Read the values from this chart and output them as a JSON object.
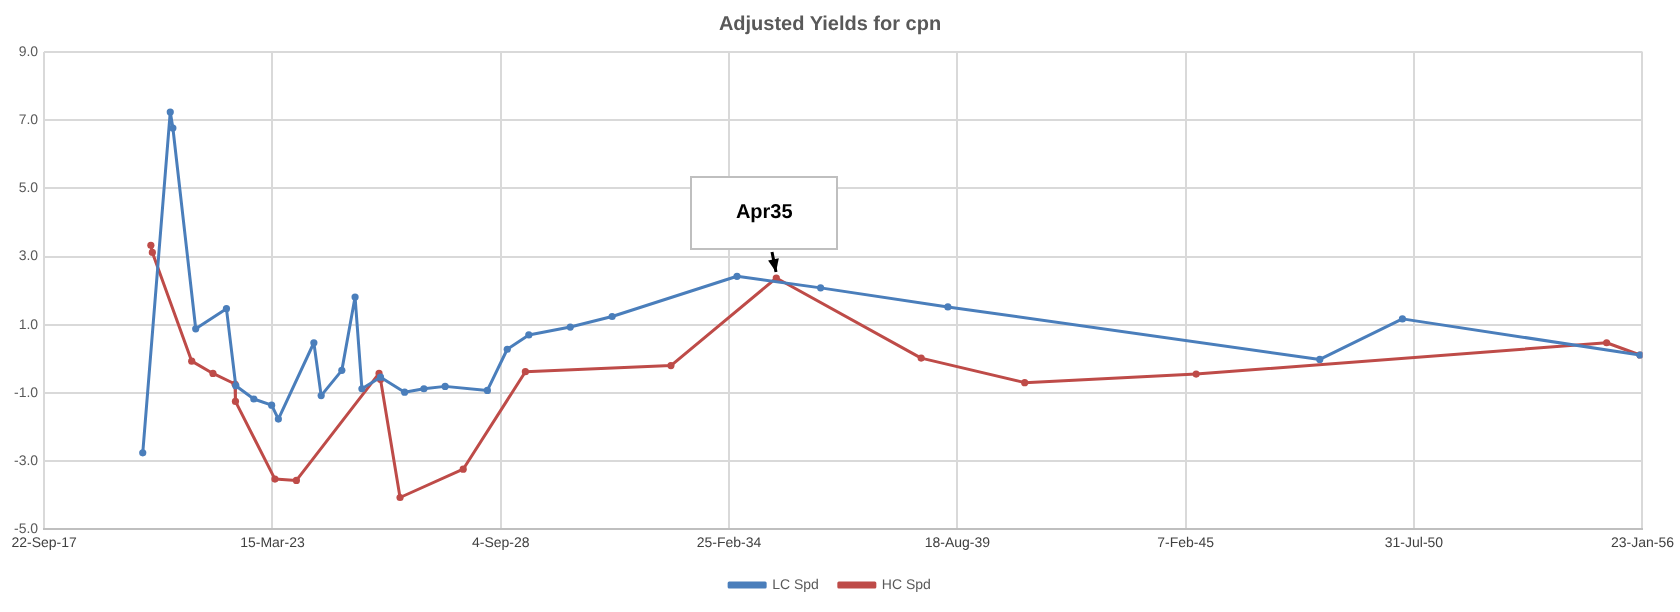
{
  "chart_data": {
    "type": "line",
    "title": "Adjusted Yields for cpn",
    "xlim": [
      "2017-09-22",
      "2056-01-23"
    ],
    "ylim": [
      -5,
      9
    ],
    "xticks": [
      {
        "value": "2017-09-22",
        "label": "22-Sep-17"
      },
      {
        "value": "2023-03-15",
        "label": "15-Mar-23"
      },
      {
        "value": "2028-09-04",
        "label": "4-Sep-28"
      },
      {
        "value": "2034-02-25",
        "label": "25-Feb-34"
      },
      {
        "value": "2039-08-18",
        "label": "18-Aug-39"
      },
      {
        "value": "2045-02-07",
        "label": "7-Feb-45"
      },
      {
        "value": "2050-07-31",
        "label": "31-Jul-50"
      },
      {
        "value": "2056-01-23",
        "label": "23-Jan-56"
      }
    ],
    "yticks": [
      {
        "value": 9,
        "label": "9.0"
      },
      {
        "value": 7,
        "label": "7.0"
      },
      {
        "value": 5,
        "label": "5.0"
      },
      {
        "value": 3,
        "label": "3.0"
      },
      {
        "value": 1,
        "label": "1.0"
      },
      {
        "value": -1,
        "label": "-1.0"
      },
      {
        "value": -3,
        "label": "-3.0"
      },
      {
        "value": -5,
        "label": "-5.0"
      }
    ],
    "grid": true,
    "legend": "bottom",
    "marker": "circle",
    "line_style": "solid",
    "series": [
      {
        "name": "LC Spd",
        "color": "#4a7ebb",
        "x": [
          "2020-02-03",
          "2020-10-01",
          "2020-10-24",
          "2021-05-12",
          "2022-02-05",
          "2022-04-28",
          "2022-10-03",
          "2023-03-08",
          "2023-05-06",
          "2024-03-12",
          "2024-05-15",
          "2024-11-12",
          "2025-03-08",
          "2025-05-07",
          "2025-10-17",
          "2026-05-16",
          "2026-11-01",
          "2027-05-06",
          "2028-05-10",
          "2028-10-31",
          "2029-05-08",
          "2030-05-06",
          "2031-05-08",
          "2034-05-06",
          "2036-05-07",
          "2039-05-27",
          "2048-04-27",
          "2050-04-21",
          "2056-01-01"
        ],
        "values": [
          -2.76,
          7.24,
          6.77,
          0.88,
          1.47,
          -0.79,
          -1.18,
          -1.36,
          -1.77,
          0.47,
          -1.08,
          -0.34,
          1.81,
          -0.88,
          -0.54,
          -0.98,
          -0.88,
          -0.81,
          -0.93,
          0.28,
          0.7,
          0.93,
          1.24,
          2.42,
          2.08,
          1.52,
          -0.02,
          1.17,
          0.11
        ]
      },
      {
        "name": "HC Spd",
        "color": "#be4b48",
        "x": [
          "2020-04-14",
          "2020-04-27",
          "2021-04-07",
          "2021-10-10",
          "2022-04-21",
          "2022-04-25",
          "2023-04-06",
          "2023-10-11",
          "2025-10-04",
          "2025-10-17",
          "2026-04-06",
          "2027-10-11",
          "2029-04-08",
          "2032-10-04",
          "2035-04-15",
          "2038-10-05",
          "2041-03-30",
          "2045-05-10",
          "2055-03-15",
          "2056-01-01"
        ],
        "values": [
          3.33,
          3.12,
          -0.07,
          -0.43,
          -0.74,
          -1.25,
          -3.53,
          -3.57,
          -0.43,
          -0.61,
          -4.07,
          -3.24,
          -0.38,
          -0.2,
          2.37,
          0.02,
          -0.7,
          -0.45,
          0.47,
          0.11
        ]
      }
    ],
    "annotations": [
      {
        "text": "Apr35",
        "x": "2035-04-15",
        "y": 2.37
      }
    ]
  }
}
